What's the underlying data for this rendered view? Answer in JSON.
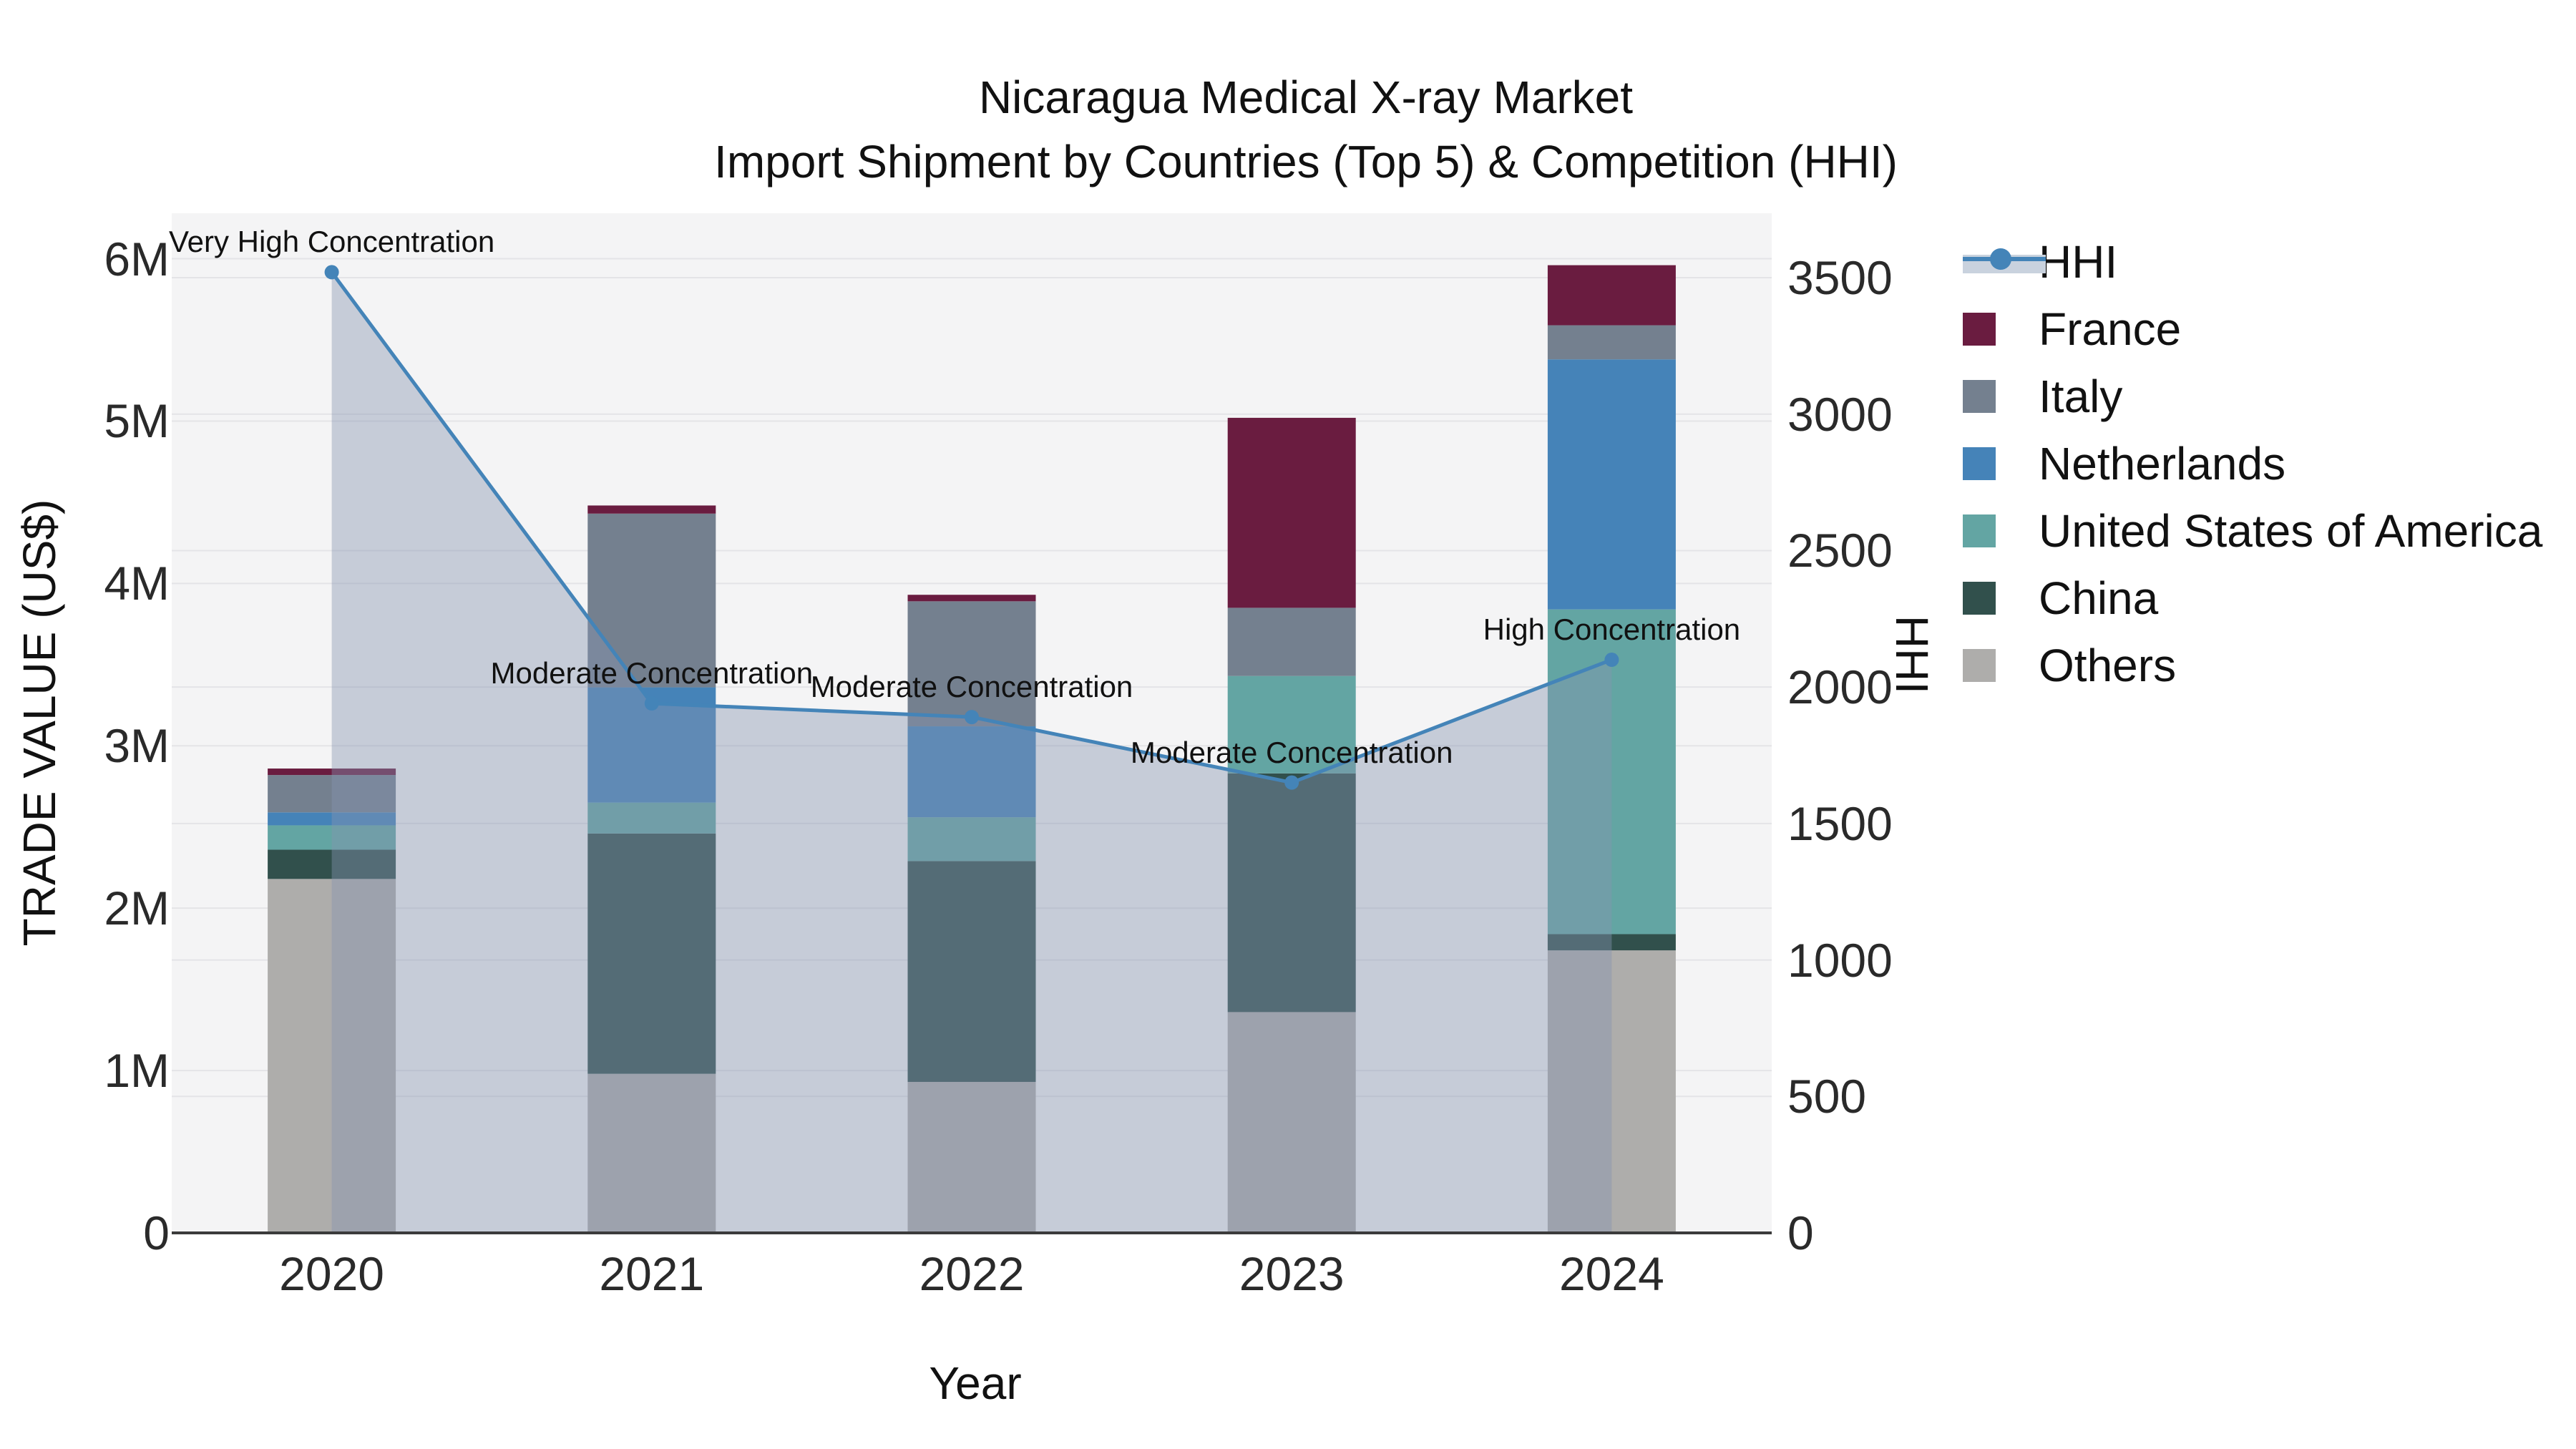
{
  "title": {
    "line1": "Nicaragua Medical X-ray Market",
    "line2": "Import Shipment by Countries (Top 5) & Competition (HHI)"
  },
  "axes": {
    "y_left": {
      "title": "TRADE VALUE (US$)",
      "tick_values": [
        0,
        1,
        2,
        3,
        4,
        5,
        6
      ],
      "tick_labels": [
        "0",
        "1M",
        "2M",
        "3M",
        "4M",
        "5M",
        "6M"
      ],
      "max": 6.28
    },
    "y_right": {
      "title": "HHI",
      "tick_values": [
        0,
        500,
        1000,
        1500,
        2000,
        2500,
        3000,
        3500
      ],
      "tick_labels": [
        "0",
        "500",
        "1000",
        "1500",
        "2000",
        "2500",
        "3000",
        "3500"
      ],
      "max": 3736
    },
    "x": {
      "title": "Year",
      "labels": [
        "2020",
        "2021",
        "2022",
        "2023",
        "2024"
      ]
    }
  },
  "legend": {
    "items": [
      {
        "label": "HHI",
        "type": "line",
        "color": "#4484b8"
      },
      {
        "label": "France",
        "type": "square",
        "color": "#6a1c40"
      },
      {
        "label": "Italy",
        "type": "square",
        "color": "#74808f"
      },
      {
        "label": "Netherlands",
        "type": "square",
        "color": "#4583b8"
      },
      {
        "label": "United States of America",
        "type": "square",
        "color": "#63a5a3"
      },
      {
        "label": "China",
        "type": "square",
        "color": "#31504c"
      },
      {
        "label": "Others",
        "type": "square",
        "color": "#aeadab"
      }
    ]
  },
  "chart_data": {
    "type": "combo: stacked-bar + line (dual axis)",
    "title": "Nicaragua Medical X-ray Market — Import Shipment by Countries (Top 5) & Competition (HHI)",
    "categories": [
      "2020",
      "2021",
      "2022",
      "2023",
      "2024"
    ],
    "values_unit": "USD millions (left axis), HHI index points (right axis)",
    "stack_order_bottom_to_top": [
      "Others",
      "China",
      "United States of America",
      "Netherlands",
      "Italy",
      "France"
    ],
    "series": [
      {
        "name": "France",
        "color": "#6a1c40",
        "values": [
          0.04,
          0.05,
          0.04,
          1.17,
          0.37
        ]
      },
      {
        "name": "Italy",
        "color": "#74808f",
        "values": [
          0.23,
          1.07,
          0.77,
          0.42,
          0.21
        ]
      },
      {
        "name": "Netherlands",
        "color": "#4583b8",
        "values": [
          0.08,
          0.71,
          0.56,
          0.0,
          1.54
        ]
      },
      {
        "name": "United States of America",
        "color": "#63a5a3",
        "values": [
          0.15,
          0.19,
          0.27,
          0.6,
          2.0
        ]
      },
      {
        "name": "China",
        "color": "#31504c",
        "values": [
          0.18,
          1.48,
          1.36,
          1.47,
          0.1
        ]
      },
      {
        "name": "Others",
        "color": "#aeadab",
        "values": [
          2.18,
          0.98,
          0.93,
          1.36,
          1.74
        ]
      }
    ],
    "bar_totals": [
      2.86,
      4.48,
      3.93,
      5.02,
      5.96
    ],
    "line_series": {
      "name": "HHI",
      "axis": "right",
      "color": "#4484b8",
      "area_fill": "rgba(134,148,176,0.42)",
      "values": [
        3520,
        1940,
        1890,
        1650,
        2100
      ]
    },
    "annotations": [
      "Very High Concentration",
      "Moderate Concentration",
      "Moderate Concentration",
      "Moderate Concentration",
      "High Concentration"
    ],
    "xlabel": "Year",
    "ylabel": "TRADE VALUE (US$)",
    "y2label": "HHI",
    "ylim": [
      0,
      6280000
    ],
    "y2lim": [
      0,
      3736
    ],
    "grid": "horizontal gridlines for both axes",
    "legend_position": "right"
  },
  "style": {
    "plot_bg": "#f4f4f5",
    "gridline_color": "#e4e4e7",
    "baseline_color": "#3b3b3b",
    "tick_color": "#2a2a2a",
    "text_color": "#111111"
  }
}
